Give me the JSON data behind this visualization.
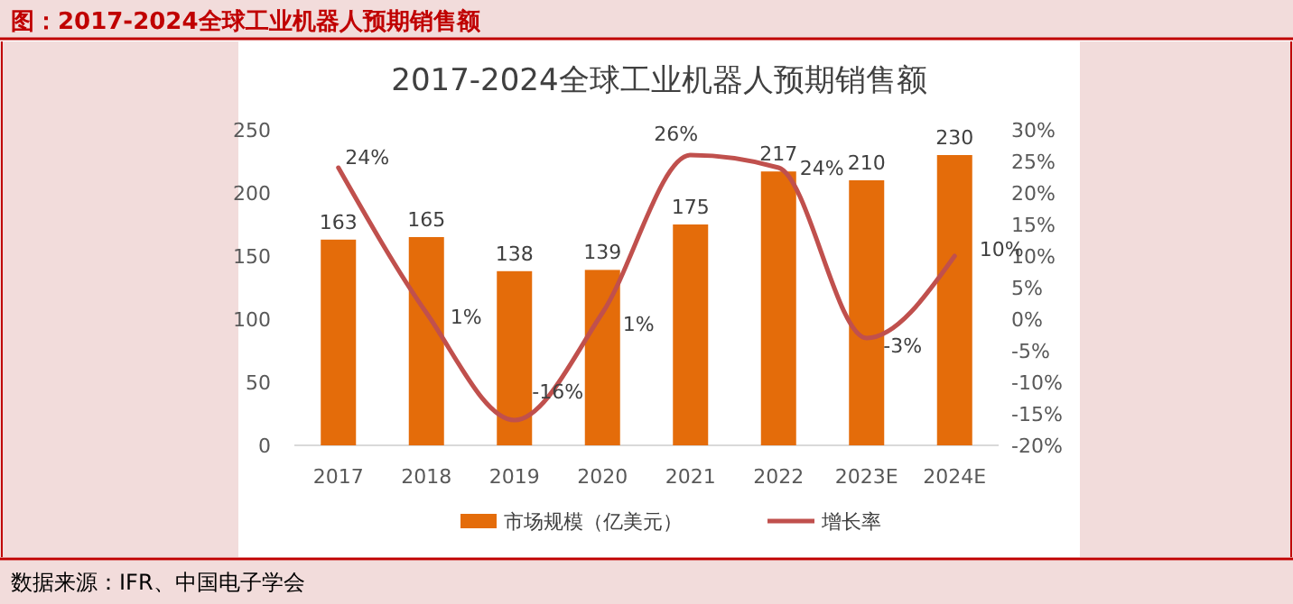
{
  "chart_data": {
    "type": "bar",
    "title": "2017-2024全球工业机器人预期销售额",
    "annotations": [
      "图：2017-2024全球工业机器人预期销售额",
      "数据来源：IFR、中国电子学会"
    ],
    "categories": [
      "2017",
      "2018",
      "2019",
      "2020",
      "2021",
      "2022",
      "2023E",
      "2024E"
    ],
    "series": [
      {
        "name": "市场规模（亿美元）",
        "color": "#e46c0a",
        "values": [
          163,
          165,
          138,
          139,
          175,
          217,
          210,
          230
        ]
      },
      {
        "name": "增长率",
        "type": "line",
        "axis": "y2",
        "color": "#c0504d",
        "values": [
          24,
          1,
          -16,
          1,
          26,
          24,
          -3,
          10
        ],
        "value_labels": [
          "24%",
          "1%",
          "-16%",
          "1%",
          "26%",
          "24%",
          "-3%",
          "10%"
        ]
      }
    ],
    "ylim": [
      0,
      250
    ],
    "yticks": [
      0,
      50,
      100,
      150,
      200,
      250
    ],
    "y2lim": [
      -20,
      30
    ],
    "y2ticks": [
      {
        "value": -20,
        "label": "-20%"
      },
      {
        "value": -15,
        "label": "-15%"
      },
      {
        "value": -10,
        "label": "-10%"
      },
      {
        "value": -5,
        "label": "-5%"
      },
      {
        "value": 0,
        "label": "0%"
      },
      {
        "value": 5,
        "label": "5%"
      },
      {
        "value": 10,
        "label": "10%"
      },
      {
        "value": 15,
        "label": "15%"
      },
      {
        "value": 20,
        "label": "20%"
      },
      {
        "value": 25,
        "label": "25%"
      },
      {
        "value": 30,
        "label": "30%"
      }
    ],
    "data_labels": true,
    "legend": "bottom",
    "grid": false,
    "marker": "none"
  }
}
